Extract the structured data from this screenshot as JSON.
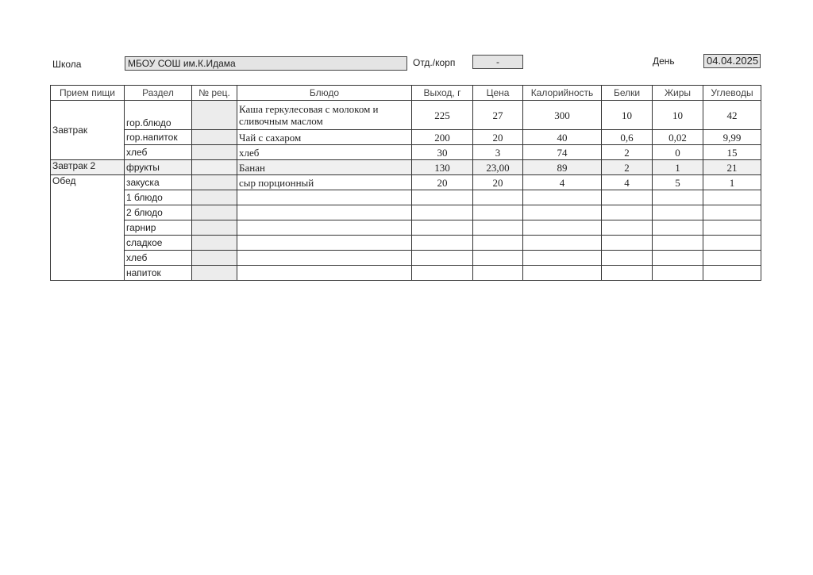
{
  "header": {
    "school_label": "Школа",
    "school_value": "МБОУ СОШ им.К.Идама",
    "dept_label": "Отд./корп",
    "dept_value": "-",
    "day_label": "День",
    "day_value": "04.04.2025"
  },
  "columns": [
    "Прием пищи",
    "Раздел",
    "№ рец.",
    "Блюдо",
    "Выход, г",
    "Цена",
    "Калорийность",
    "Белки",
    "Жиры",
    "Углеводы"
  ],
  "rows": [
    {
      "meal": "Завтрак",
      "section": "гор.блюдо",
      "recipe": "",
      "dish": "Каша геркулесовая с молоком и сливочным маслом",
      "yield": "225",
      "price": "27",
      "calories": "300",
      "protein": "10",
      "fat": "10",
      "carbs": "42"
    },
    {
      "meal": "",
      "section": "гор.напиток",
      "recipe": "",
      "dish": "Чай с сахаром",
      "yield": "200",
      "price": "20",
      "calories": "40",
      "protein": "0,6",
      "fat": "0,02",
      "carbs": "9,99"
    },
    {
      "meal": "",
      "section": "хлеб",
      "recipe": "",
      "dish": "хлеб",
      "yield": "30",
      "price": "3",
      "calories": "74",
      "protein": "2",
      "fat": "0",
      "carbs": "15"
    },
    {
      "meal": "Завтрак 2",
      "section": "фрукты",
      "recipe": "",
      "dish": "Банан",
      "yield": "130",
      "price": "23,00",
      "calories": "89",
      "protein": "2",
      "fat": "1",
      "carbs": "21"
    },
    {
      "meal": "Обед",
      "section": "закуска",
      "recipe": "",
      "dish": "сыр порционный",
      "yield": "20",
      "price": "20",
      "calories": "4",
      "protein": "4",
      "fat": "5",
      "carbs": "1"
    },
    {
      "meal": "",
      "section": "1 блюдо",
      "recipe": "",
      "dish": "",
      "yield": "",
      "price": "",
      "calories": "",
      "protein": "",
      "fat": "",
      "carbs": ""
    },
    {
      "meal": "",
      "section": "2 блюдо",
      "recipe": "",
      "dish": "",
      "yield": "",
      "price": "",
      "calories": "",
      "protein": "",
      "fat": "",
      "carbs": ""
    },
    {
      "meal": "",
      "section": "гарнир",
      "recipe": "",
      "dish": "",
      "yield": "",
      "price": "",
      "calories": "",
      "protein": "",
      "fat": "",
      "carbs": ""
    },
    {
      "meal": "",
      "section": "сладкое",
      "recipe": "",
      "dish": "",
      "yield": "",
      "price": "",
      "calories": "",
      "protein": "",
      "fat": "",
      "carbs": ""
    },
    {
      "meal": "",
      "section": "хлеб",
      "recipe": "",
      "dish": "",
      "yield": "",
      "price": "",
      "calories": "",
      "protein": "",
      "fat": "",
      "carbs": ""
    },
    {
      "meal": "",
      "section": "напиток",
      "recipe": "",
      "dish": "",
      "yield": "",
      "price": "",
      "calories": "",
      "protein": "",
      "fat": "",
      "carbs": ""
    }
  ]
}
